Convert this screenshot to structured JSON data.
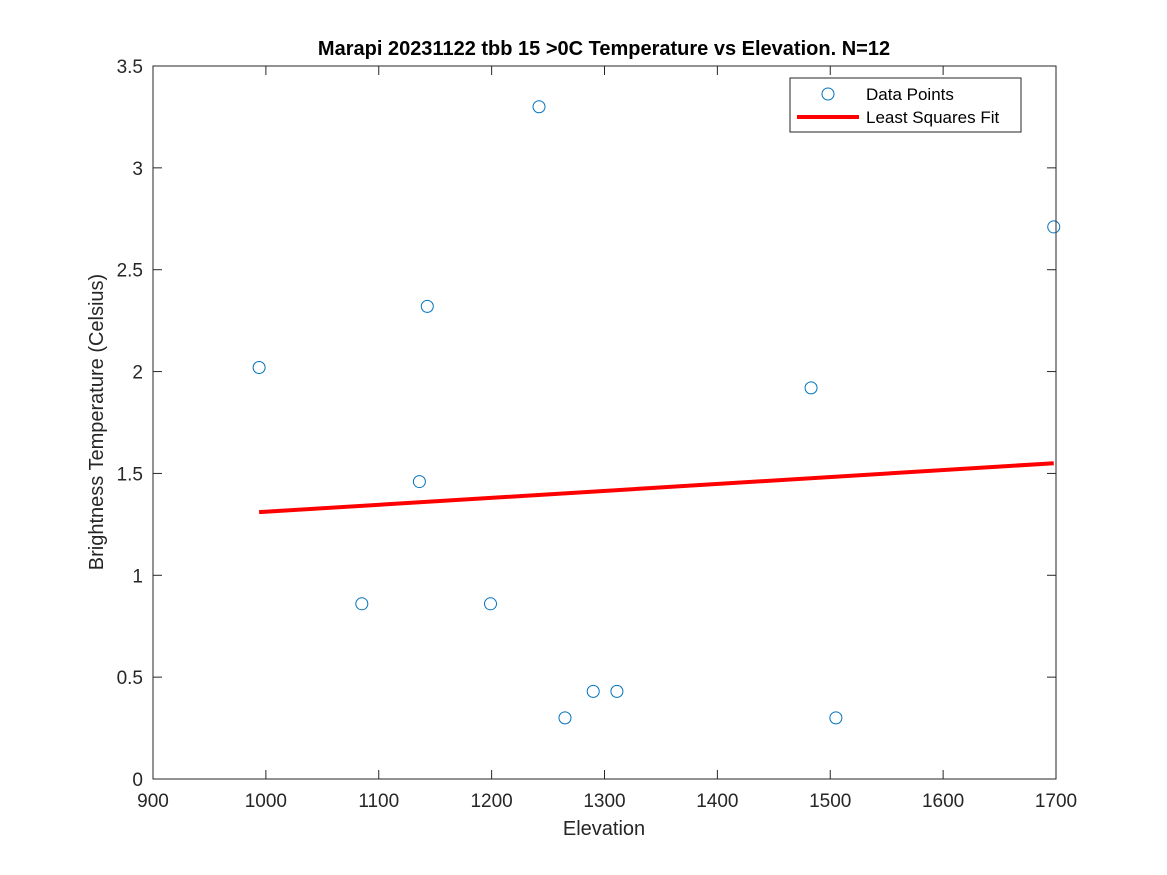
{
  "chart_data": {
    "type": "scatter",
    "title": "Marapi 20231122 tbb 15 >0C Temperature vs Elevation. N=12",
    "xlabel": "Elevation",
    "ylabel": "Brightness Temperature (Celsius)",
    "xlim": [
      900,
      1700
    ],
    "ylim": [
      0,
      3.5
    ],
    "xticks": [
      900,
      1000,
      1100,
      1200,
      1300,
      1400,
      1500,
      1600,
      1700
    ],
    "yticks": [
      0,
      0.5,
      1,
      1.5,
      2,
      2.5,
      3,
      3.5
    ],
    "xtick_labels": [
      "900",
      "1000",
      "1100",
      "1200",
      "1300",
      "1400",
      "1500",
      "1600",
      "1700"
    ],
    "ytick_labels": [
      "0",
      "0.5",
      "1",
      "1.5",
      "2",
      "2.5",
      "3",
      "3.5"
    ],
    "grid": false,
    "legend_position": "top-right",
    "series": [
      {
        "name": "Data Points",
        "kind": "scatter",
        "color": "#0072BD",
        "marker": "open-circle",
        "x": [
          994,
          1085,
          1136,
          1143,
          1199,
          1242,
          1265,
          1290,
          1311,
          1483,
          1505,
          1698
        ],
        "y": [
          2.02,
          0.86,
          1.46,
          2.32,
          0.86,
          3.3,
          0.3,
          0.43,
          0.43,
          1.92,
          0.3,
          2.71
        ]
      },
      {
        "name": "Least Squares Fit",
        "kind": "line",
        "color": "#FF0000",
        "x": [
          994,
          1698
        ],
        "y": [
          1.31,
          1.55
        ]
      }
    ]
  }
}
